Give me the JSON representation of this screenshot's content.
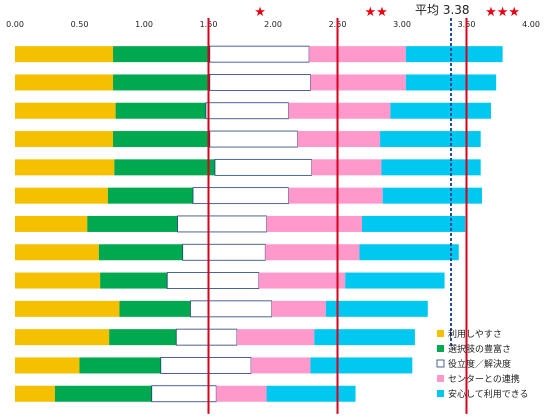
{
  "chart_data": {
    "type": "bar",
    "orientation": "horizontal",
    "stacked": true,
    "xlim": [
      0,
      4.0
    ],
    "ticks": [
      "0.00",
      "0.50",
      "1.00",
      "1.50",
      "2.00",
      "2.50",
      "3.00",
      "3.50",
      "4.00"
    ],
    "tick_values": [
      0,
      0.5,
      1.0,
      1.5,
      2.0,
      2.5,
      3.0,
      3.5,
      4.0
    ],
    "reference_lines": [
      1.5,
      2.5,
      3.5
    ],
    "average": {
      "label": "平均 3.38",
      "value": 3.38
    },
    "star_labels": [
      {
        "text": "★",
        "value": 1.9
      },
      {
        "text": "★★",
        "value": 2.8
      },
      {
        "text": "★★★",
        "value": 3.78
      }
    ],
    "legend_position": "bottom-right",
    "series": [
      {
        "name": "利用しやすさ",
        "color": "#f5c000",
        "values": [
          0.76,
          0.76,
          0.78,
          0.76,
          0.77,
          0.72,
          0.56,
          0.65,
          0.66,
          0.81,
          0.73,
          0.5,
          0.31
        ]
      },
      {
        "name": "選択肢の豊富さ",
        "color": "#00a84f",
        "values": [
          0.75,
          0.75,
          0.7,
          0.75,
          0.78,
          0.66,
          0.7,
          0.65,
          0.52,
          0.55,
          0.52,
          0.63,
          0.75
        ]
      },
      {
        "name": "役立度／解決度",
        "color": "#ffffff",
        "values": [
          0.77,
          0.78,
          0.64,
          0.68,
          0.75,
          0.74,
          0.69,
          0.64,
          0.71,
          0.63,
          0.47,
          0.7,
          0.5
        ]
      },
      {
        "name": "センターとの連携",
        "color": "#ff99cc",
        "values": [
          0.75,
          0.74,
          0.79,
          0.64,
          0.54,
          0.73,
          0.74,
          0.73,
          0.67,
          0.42,
          0.6,
          0.46,
          0.39
        ]
      },
      {
        "name": "安心して利用できる",
        "color": "#00c8f0",
        "values": [
          0.75,
          0.7,
          0.78,
          0.78,
          0.77,
          0.77,
          0.8,
          0.77,
          0.77,
          0.79,
          0.78,
          0.79,
          0.69
        ]
      }
    ]
  }
}
